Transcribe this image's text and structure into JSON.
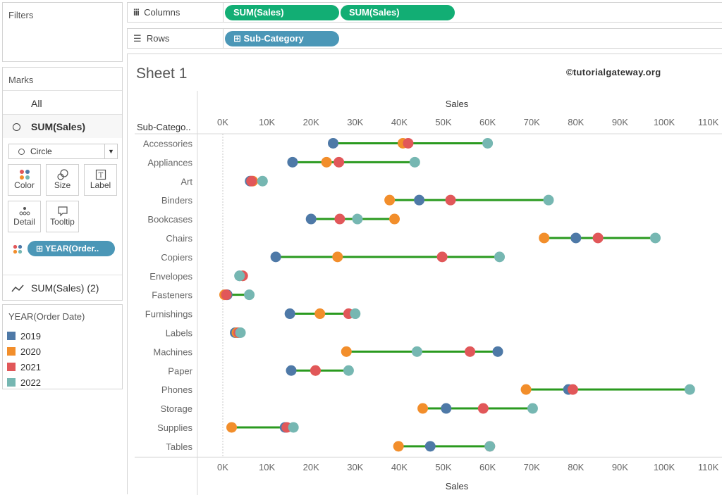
{
  "shelves": {
    "columns_label": "Columns",
    "rows_label": "Rows",
    "columns_pills": [
      "SUM(Sales)",
      "SUM(Sales)"
    ],
    "rows_pill": "Sub-Category"
  },
  "filters": {
    "title": "Filters"
  },
  "marks": {
    "title": "Marks",
    "all_label": "All",
    "measure1": "SUM(Sales)",
    "mark_type": "Circle",
    "cards": [
      "Color",
      "Size",
      "Label",
      "Detail",
      "Tooltip"
    ],
    "color_pill": "YEAR(Order..",
    "measure2": "SUM(Sales) (2)"
  },
  "legend": {
    "title": "YEAR(Order Date)",
    "items": [
      {
        "label": "2019",
        "color": "#4e79a7"
      },
      {
        "label": "2020",
        "color": "#f28e2b"
      },
      {
        "label": "2021",
        "color": "#e15759"
      },
      {
        "label": "2022",
        "color": "#76b7b2"
      }
    ]
  },
  "sheet": {
    "title": "Sheet 1",
    "watermark": "©tutorialgateway.org",
    "row_header": "Sub-Catego..",
    "line_color": "#2a9a1f"
  },
  "chart_data": {
    "type": "scatter",
    "subtype": "dumbbell",
    "xlabel": "Sales",
    "ylabel": "Sub-Category",
    "xlim": [
      -5000,
      112000
    ],
    "x_ticks": [
      0,
      10000,
      20000,
      30000,
      40000,
      50000,
      60000,
      70000,
      80000,
      90000,
      100000,
      110000
    ],
    "x_tick_labels": [
      "0K",
      "10K",
      "20K",
      "30K",
      "40K",
      "50K",
      "60K",
      "70K",
      "80K",
      "90K",
      "100K",
      "110K"
    ],
    "categories": [
      "Accessories",
      "Appliances",
      "Art",
      "Binders",
      "Bookcases",
      "Chairs",
      "Copiers",
      "Envelopes",
      "Fasteners",
      "Furnishings",
      "Labels",
      "Machines",
      "Paper",
      "Phones",
      "Storage",
      "Supplies",
      "Tables"
    ],
    "series": [
      {
        "name": "2019",
        "color": "#4e79a7",
        "values": [
          25000,
          15800,
          6200,
          44500,
          20000,
          80000,
          12000,
          3800,
          1000,
          15200,
          2800,
          62300,
          15500,
          78300,
          50600,
          14100,
          47000
        ]
      },
      {
        "name": "2020",
        "color": "#f28e2b",
        "values": [
          40800,
          23500,
          6800,
          37800,
          38900,
          72800,
          26000,
          4500,
          400,
          22000,
          3200,
          28000,
          21000,
          68700,
          45300,
          2000,
          39800
        ]
      },
      {
        "name": "2021",
        "color": "#e15759",
        "values": [
          42000,
          26300,
          6500,
          51600,
          26500,
          85000,
          49700,
          4500,
          800,
          28500,
          3600,
          56000,
          21000,
          79300,
          59000,
          14500,
          60500
        ]
      },
      {
        "name": "2022",
        "color": "#76b7b2",
        "values": [
          60000,
          43500,
          9000,
          73800,
          30500,
          98000,
          62700,
          3800,
          6000,
          30000,
          4000,
          44000,
          28500,
          105800,
          70200,
          16000,
          60500
        ]
      }
    ]
  }
}
